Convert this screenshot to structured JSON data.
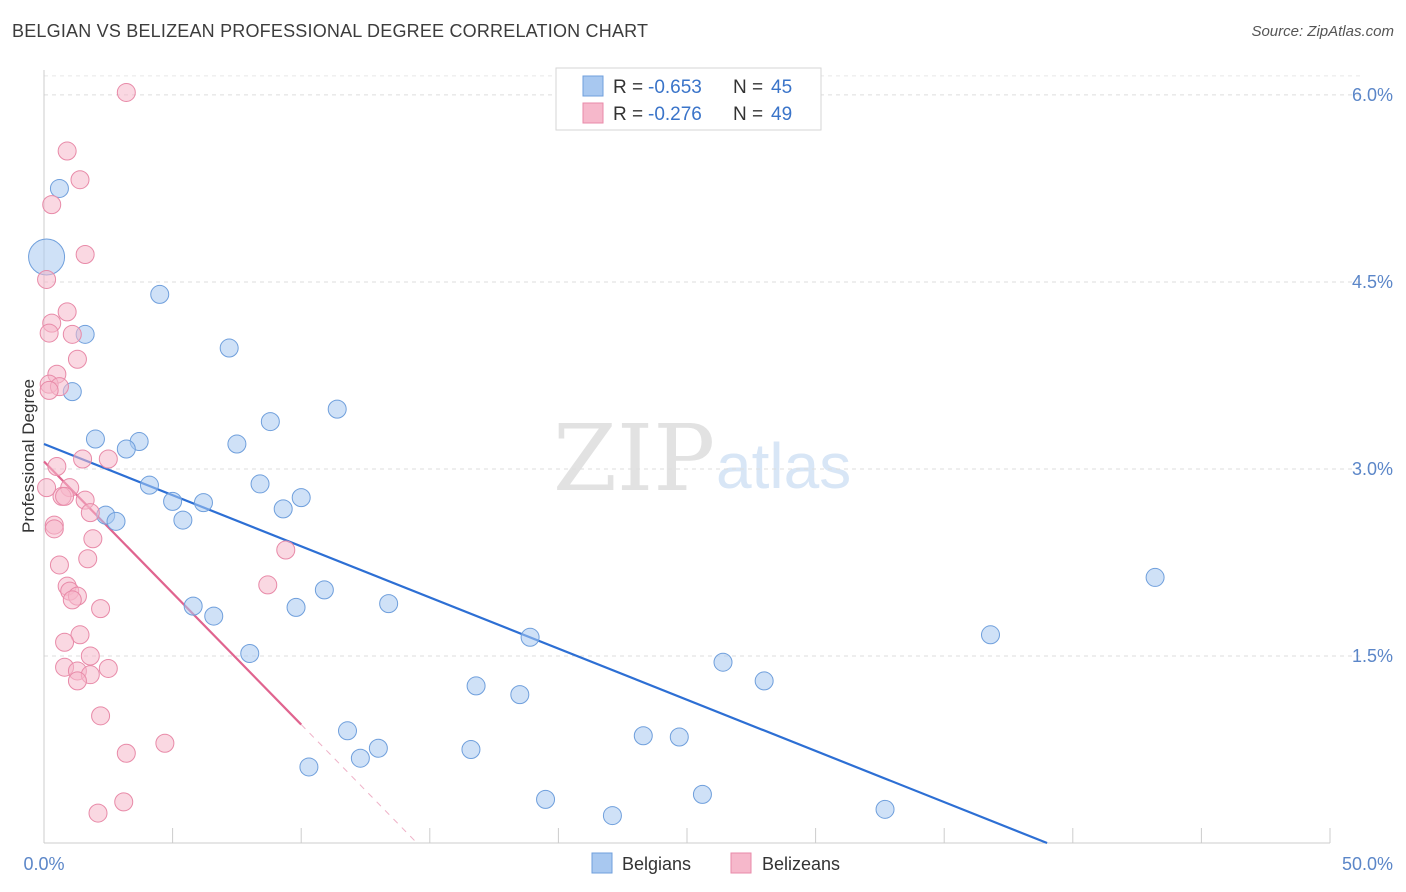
{
  "header": {
    "title": "BELGIAN VS BELIZEAN PROFESSIONAL DEGREE CORRELATION CHART",
    "source": "Source: ZipAtlas.com"
  },
  "watermark": {
    "part1": "ZIP",
    "part2": "atlas"
  },
  "legend": {
    "rows": [
      {
        "r_label": "R =",
        "r_value": "-0.653",
        "n_label": "N =",
        "n_value": "45",
        "color": "#a8c8f0"
      },
      {
        "r_label": "R =",
        "r_value": "-0.276",
        "n_label": "N =",
        "n_value": "49",
        "color": "#f6b8cb"
      }
    ]
  },
  "bottom_legend": [
    {
      "label": "Belgians",
      "color": "#a8c8f0"
    },
    {
      "label": "Belizeans",
      "color": "#f6b8cb"
    }
  ],
  "chart_data": {
    "type": "scatter",
    "title": "BELGIAN VS BELIZEAN PROFESSIONAL DEGREE CORRELATION CHART",
    "xlabel": "",
    "ylabel": "Professional Degree",
    "xlim": [
      0,
      50
    ],
    "ylim": [
      0,
      6.2
    ],
    "x_tick_labels": [
      "0.0%",
      "50.0%"
    ],
    "y_ticks": [
      1.5,
      3.0,
      4.5,
      6.0
    ],
    "y_tick_labels": [
      "1.5%",
      "3.0%",
      "4.5%",
      "6.0%"
    ],
    "grid": "horizontal dashed",
    "series": [
      {
        "name": "Belgians",
        "color": "#a8c8f0",
        "stroke": "#6f9fdc",
        "trend_color": "#2d6fd4",
        "trend": {
          "x0": 0,
          "y0": 3.2,
          "x1": 39,
          "y1": 0.0
        },
        "points": [
          [
            0.6,
            5.25,
            9
          ],
          [
            0.1,
            4.7,
            18
          ],
          [
            4.5,
            4.4,
            9
          ],
          [
            1.6,
            4.08,
            9
          ],
          [
            7.2,
            3.97,
            9
          ],
          [
            1.1,
            3.62,
            9
          ],
          [
            11.4,
            3.48,
            9
          ],
          [
            8.8,
            3.38,
            9
          ],
          [
            2.0,
            3.24,
            9
          ],
          [
            3.7,
            3.22,
            9
          ],
          [
            3.2,
            3.16,
            9
          ],
          [
            7.5,
            3.2,
            9
          ],
          [
            4.1,
            2.87,
            9
          ],
          [
            8.4,
            2.88,
            9
          ],
          [
            5.0,
            2.74,
            9
          ],
          [
            6.2,
            2.73,
            9
          ],
          [
            10.0,
            2.77,
            9
          ],
          [
            9.3,
            2.68,
            9
          ],
          [
            2.4,
            2.63,
            9
          ],
          [
            2.8,
            2.58,
            9
          ],
          [
            5.4,
            2.59,
            9
          ],
          [
            43.2,
            2.13,
            9
          ],
          [
            10.9,
            2.03,
            9
          ],
          [
            5.8,
            1.9,
            9
          ],
          [
            9.8,
            1.89,
            9
          ],
          [
            13.4,
            1.92,
            9
          ],
          [
            6.6,
            1.82,
            9
          ],
          [
            18.9,
            1.65,
            9
          ],
          [
            36.8,
            1.67,
            9
          ],
          [
            8.0,
            1.52,
            9
          ],
          [
            26.4,
            1.45,
            9
          ],
          [
            28.0,
            1.3,
            9
          ],
          [
            16.8,
            1.26,
            9
          ],
          [
            18.5,
            1.19,
            9
          ],
          [
            11.8,
            0.9,
            9
          ],
          [
            23.3,
            0.86,
            9
          ],
          [
            24.7,
            0.85,
            9
          ],
          [
            13.0,
            0.76,
            9
          ],
          [
            16.6,
            0.75,
            9
          ],
          [
            12.3,
            0.68,
            9
          ],
          [
            10.3,
            0.61,
            9
          ],
          [
            25.6,
            0.39,
            9
          ],
          [
            19.5,
            0.35,
            9
          ],
          [
            22.1,
            0.22,
            9
          ],
          [
            32.7,
            0.27,
            9
          ]
        ]
      },
      {
        "name": "Belizeans",
        "color": "#f6b8cb",
        "stroke": "#e88aa8",
        "trend_color": "#e0648f",
        "trend": {
          "x0": 0,
          "y0": 3.06,
          "x1": 10,
          "y1": 0.95
        },
        "trend_extension": {
          "x0": 10,
          "y0": 0.95,
          "x1": 14.5,
          "y1": 0.0
        },
        "points": [
          [
            3.2,
            6.02,
            9
          ],
          [
            0.9,
            5.55,
            9
          ],
          [
            1.4,
            5.32,
            9
          ],
          [
            0.3,
            5.12,
            9
          ],
          [
            1.6,
            4.72,
            9
          ],
          [
            0.1,
            4.52,
            9
          ],
          [
            0.9,
            4.26,
            9
          ],
          [
            0.3,
            4.17,
            9
          ],
          [
            0.2,
            4.09,
            9
          ],
          [
            1.1,
            4.08,
            9
          ],
          [
            1.3,
            3.88,
            9
          ],
          [
            0.5,
            3.76,
            9
          ],
          [
            0.2,
            3.68,
            9
          ],
          [
            0.6,
            3.66,
            9
          ],
          [
            0.2,
            3.63,
            9
          ],
          [
            2.5,
            3.08,
            9
          ],
          [
            1.5,
            3.08,
            9
          ],
          [
            0.5,
            3.02,
            9
          ],
          [
            0.1,
            2.85,
            9
          ],
          [
            1.0,
            2.85,
            9
          ],
          [
            0.7,
            2.78,
            9
          ],
          [
            0.8,
            2.78,
            9
          ],
          [
            1.6,
            2.75,
            9
          ],
          [
            1.8,
            2.65,
            9
          ],
          [
            0.4,
            2.55,
            9
          ],
          [
            0.4,
            2.52,
            9
          ],
          [
            1.9,
            2.44,
            9
          ],
          [
            9.4,
            2.35,
            9
          ],
          [
            1.7,
            2.28,
            9
          ],
          [
            0.6,
            2.23,
            9
          ],
          [
            8.7,
            2.07,
            9
          ],
          [
            0.9,
            2.06,
            9
          ],
          [
            1.0,
            2.02,
            9
          ],
          [
            1.3,
            1.98,
            9
          ],
          [
            1.1,
            1.95,
            9
          ],
          [
            2.2,
            1.88,
            9
          ],
          [
            1.4,
            1.67,
            9
          ],
          [
            0.8,
            1.61,
            9
          ],
          [
            1.8,
            1.5,
            9
          ],
          [
            0.8,
            1.41,
            9
          ],
          [
            2.5,
            1.4,
            9
          ],
          [
            1.3,
            1.38,
            9
          ],
          [
            1.8,
            1.35,
            9
          ],
          [
            1.3,
            1.3,
            9
          ],
          [
            2.2,
            1.02,
            9
          ],
          [
            4.7,
            0.8,
            9
          ],
          [
            3.2,
            0.72,
            9
          ],
          [
            3.1,
            0.33,
            9
          ],
          [
            2.1,
            0.24,
            9
          ]
        ]
      }
    ]
  }
}
